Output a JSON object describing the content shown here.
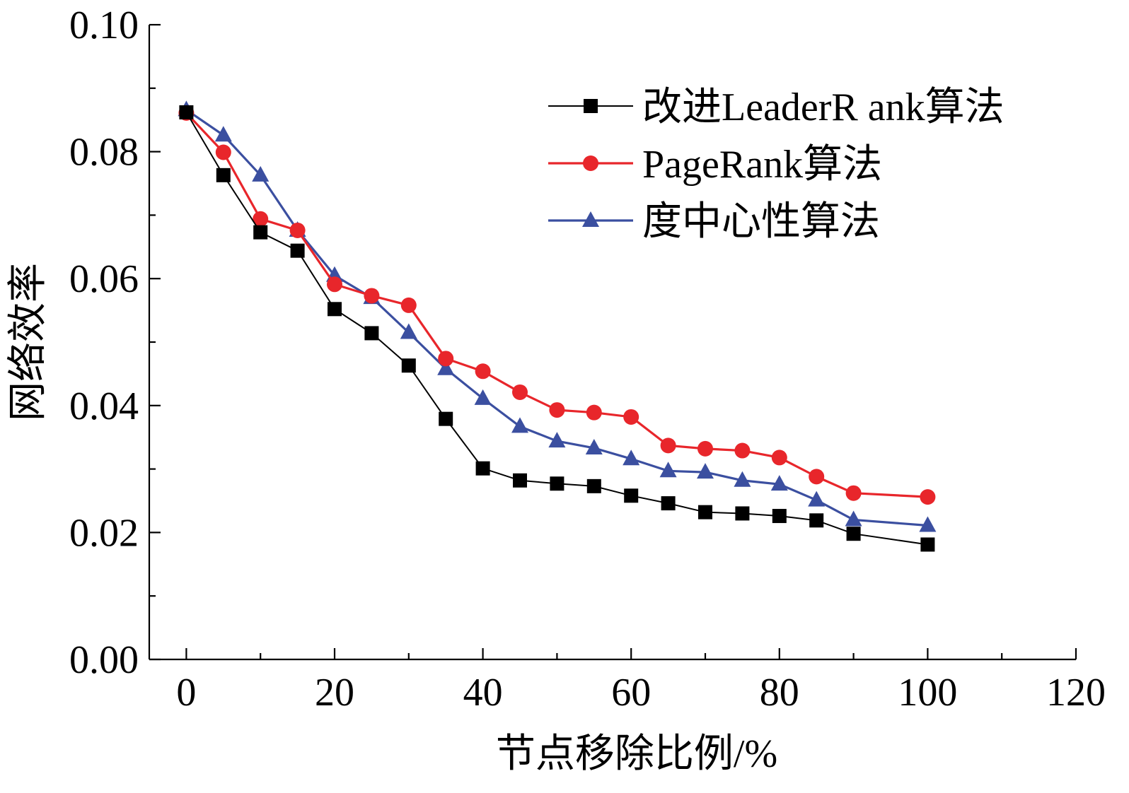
{
  "chart_data": {
    "type": "line",
    "xlabel": "节点移除比例/%",
    "ylabel": "网络效率",
    "xlim": [
      -5,
      120
    ],
    "ylim": [
      0,
      0.1
    ],
    "x_ticks": [
      0,
      20,
      40,
      60,
      80,
      100,
      120
    ],
    "x_tick_labels": [
      "0",
      "20",
      "40",
      "60",
      "80",
      "100",
      "120"
    ],
    "y_ticks": [
      0,
      0.02,
      0.04,
      0.06,
      0.08,
      0.1
    ],
    "y_tick_labels": [
      "0.00",
      "0.02",
      "0.04",
      "0.06",
      "0.08",
      "0.10"
    ],
    "grid": false,
    "legend_position": "top-right",
    "x": [
      0,
      5,
      10,
      15,
      20,
      25,
      30,
      35,
      40,
      45,
      50,
      55,
      60,
      65,
      70,
      75,
      80,
      85,
      90,
      100
    ],
    "series": [
      {
        "name": "改进LeaderR ank算法",
        "color": "#000000",
        "marker": "square",
        "values": [
          0.0862,
          0.0763,
          0.0673,
          0.0644,
          0.0552,
          0.0514,
          0.0463,
          0.0379,
          0.0301,
          0.0282,
          0.0277,
          0.0273,
          0.0258,
          0.0246,
          0.0232,
          0.023,
          0.0226,
          0.0219,
          0.0198,
          0.0181
        ]
      },
      {
        "name": "PageRank算法",
        "color": "#e8262b",
        "marker": "circle",
        "values": [
          0.0861,
          0.0799,
          0.0694,
          0.0676,
          0.0591,
          0.0573,
          0.0558,
          0.0474,
          0.0454,
          0.0421,
          0.0393,
          0.0389,
          0.0382,
          0.0337,
          0.0332,
          0.0329,
          0.0318,
          0.0288,
          0.0262,
          0.0256
        ]
      },
      {
        "name": "度中心性算法",
        "color": "#3b4fa0",
        "marker": "triangle",
        "values": [
          0.0866,
          0.0826,
          0.0763,
          0.0676,
          0.0605,
          0.057,
          0.0515,
          0.0458,
          0.0411,
          0.0367,
          0.0344,
          0.0333,
          0.0316,
          0.0297,
          0.0295,
          0.0282,
          0.0276,
          0.0251,
          0.022,
          0.0211
        ]
      }
    ]
  }
}
